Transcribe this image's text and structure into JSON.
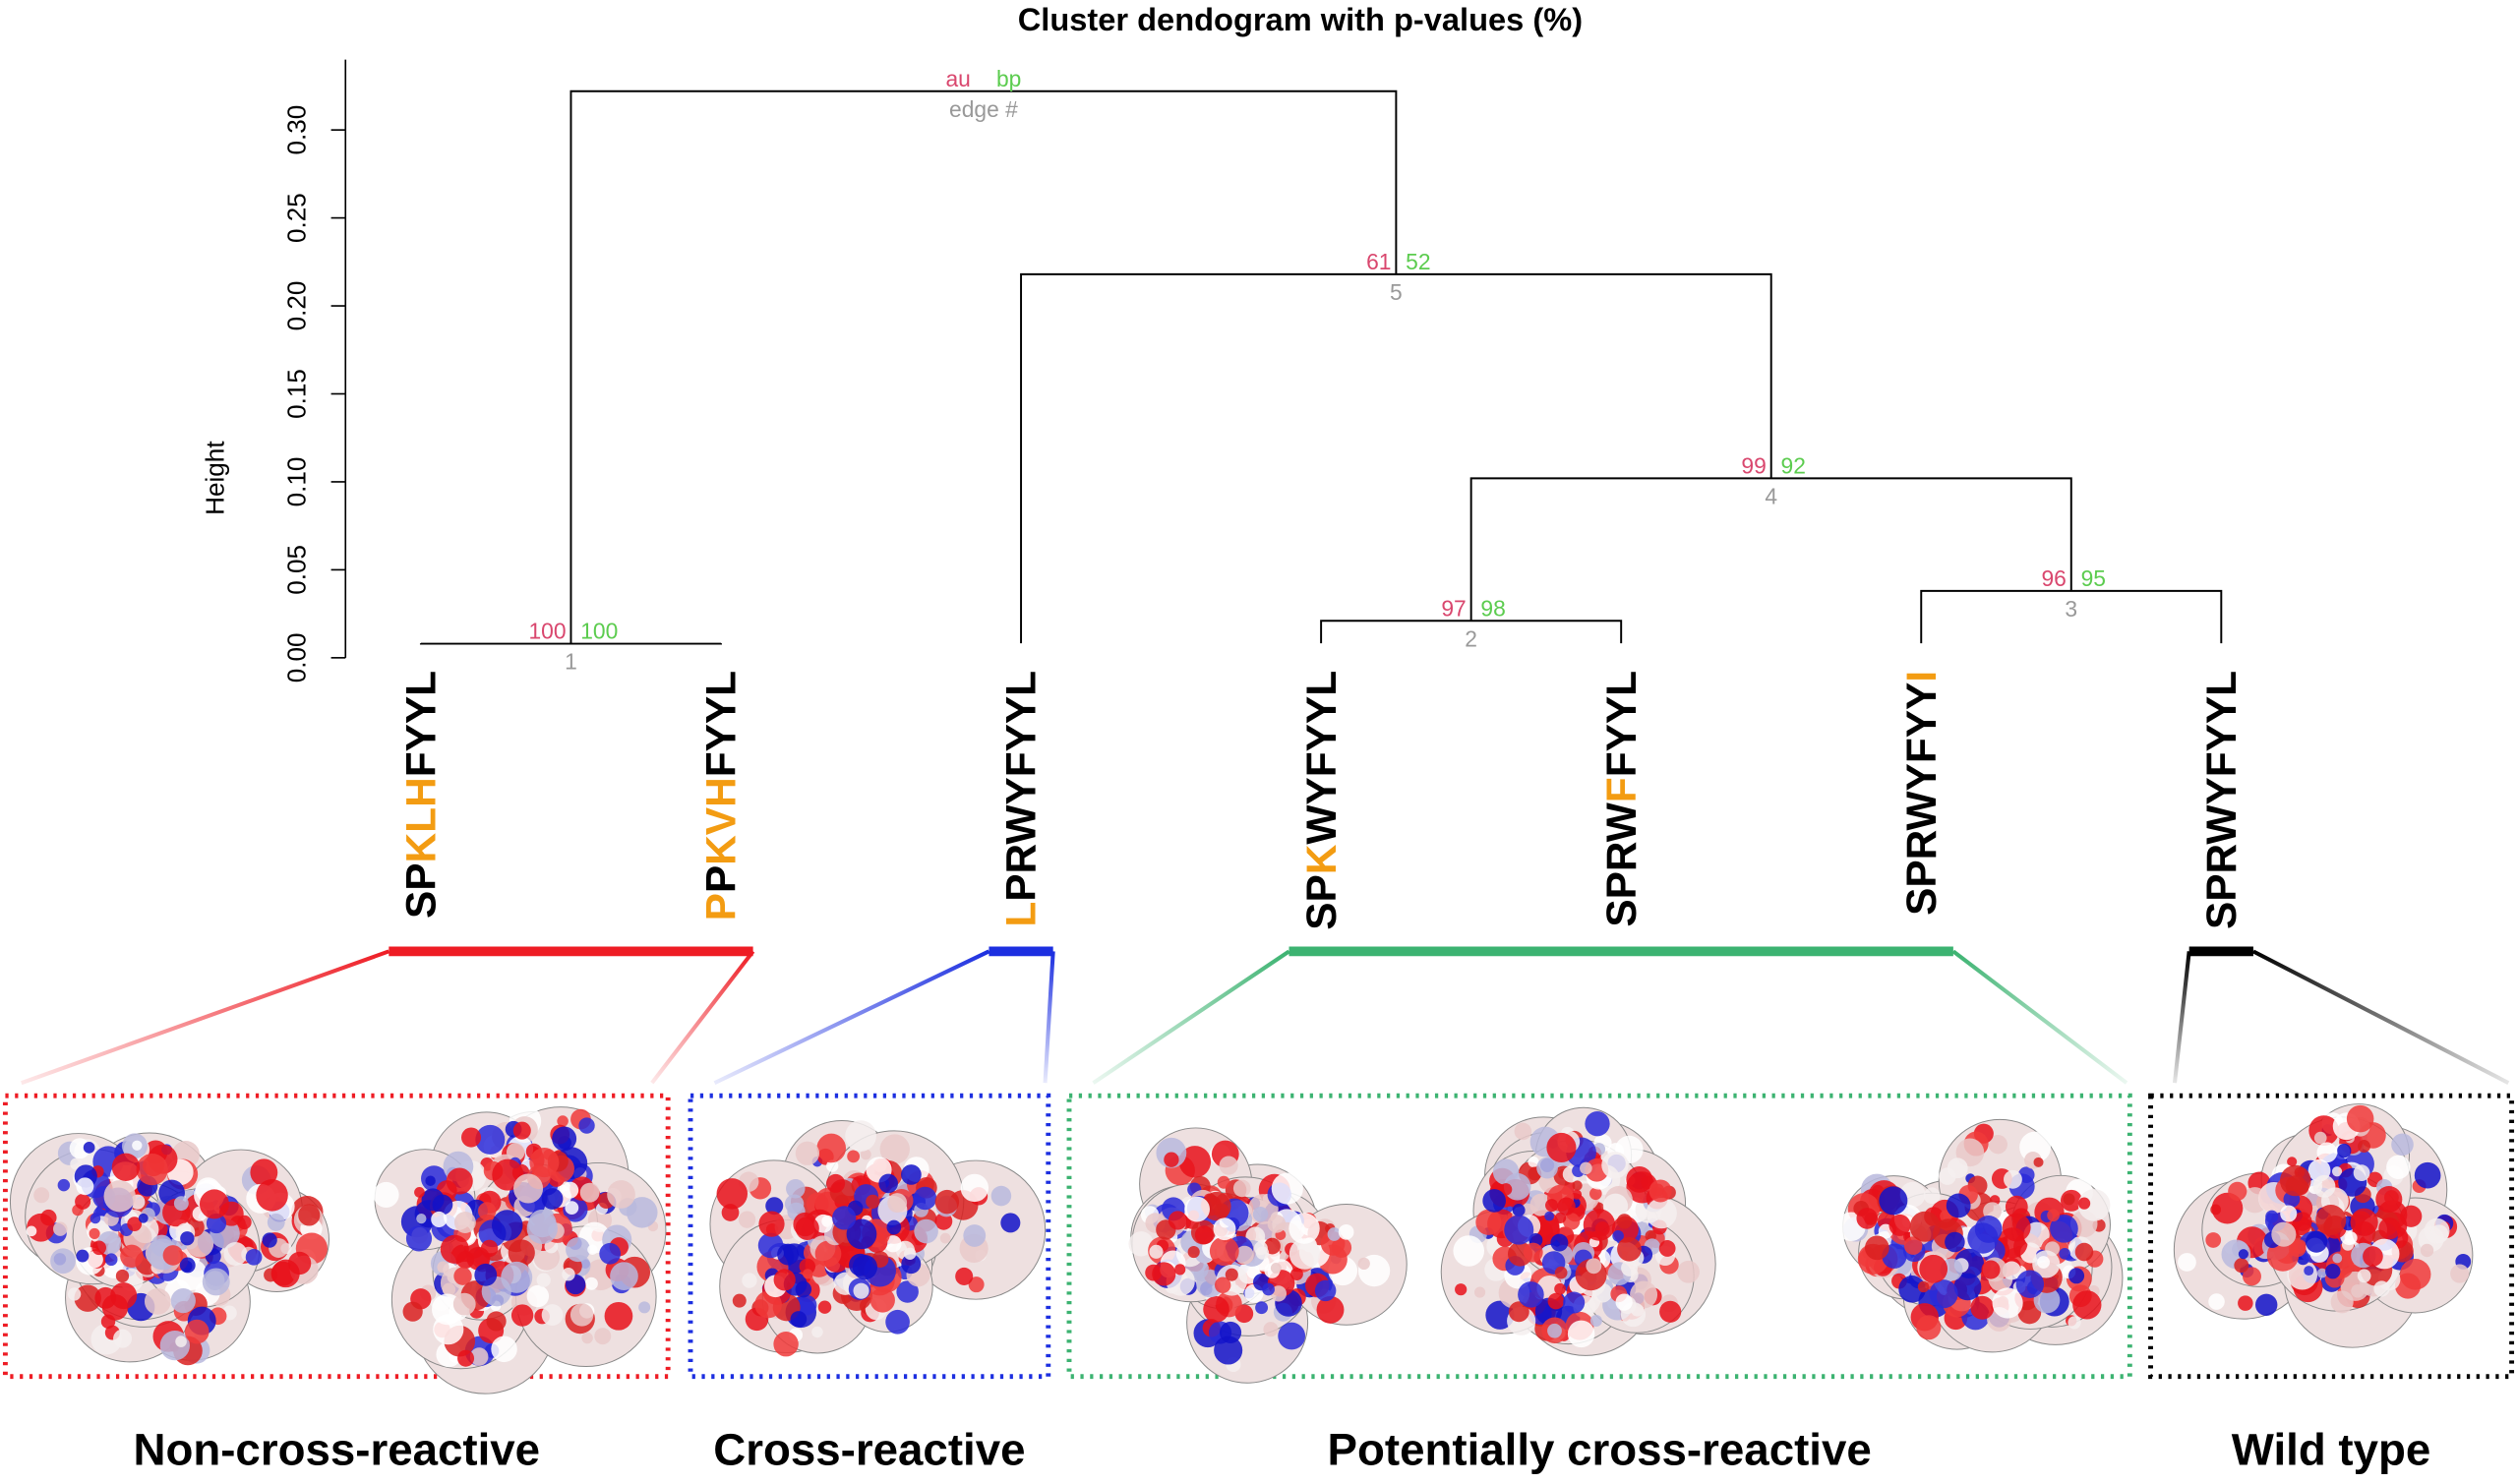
{
  "chart_data": {
    "type": "dendrogram",
    "title": "Cluster dendogram with p-values (%)",
    "y_label": "Height",
    "ylim": [
      0,
      0.34
    ],
    "yticks": [
      {
        "value": 0,
        "label": "0.00"
      },
      0.05,
      {
        "value": 0.1,
        "label": "0.10"
      },
      0.15,
      {
        "value": 0.2,
        "label": "0.20"
      },
      0.25,
      {
        "value": 0.3,
        "label": "0.30"
      }
    ],
    "line_color": "#000000",
    "au_color": "#d9476e",
    "bp_color": "#5ccc4f",
    "edge_color": "#999999",
    "legend": {
      "au": "au",
      "bp": "bp",
      "edge": "edge #"
    },
    "leaves": [
      [
        {
          "text": "SP",
          "color": "#000000"
        },
        {
          "text": "KLH",
          "color": "#f39c12"
        },
        {
          "text": "FYYL",
          "color": "#000000"
        }
      ],
      [
        {
          "text": "P",
          "color": "#f39c12"
        },
        {
          "text": "P",
          "color": "#000000"
        },
        {
          "text": "KVH",
          "color": "#f39c12"
        },
        {
          "text": "FYYL",
          "color": "#000000"
        }
      ],
      [
        {
          "text": "L",
          "color": "#f39c12"
        },
        {
          "text": "PRWYFYYL",
          "color": "#000000"
        }
      ],
      [
        {
          "text": "SP",
          "color": "#000000"
        },
        {
          "text": "K",
          "color": "#f39c12"
        },
        {
          "text": "WYFYYL",
          "color": "#000000"
        }
      ],
      [
        {
          "text": "SPRW",
          "color": "#000000"
        },
        {
          "text": "F",
          "color": "#f39c12"
        },
        {
          "text": "FYYL",
          "color": "#000000"
        }
      ],
      [
        {
          "text": "SPRWYFYY",
          "color": "#000000"
        },
        {
          "text": "I",
          "color": "#f39c12"
        }
      ],
      [
        {
          "text": "SPRWYFYYL",
          "color": "#000000"
        }
      ]
    ],
    "merges": [
      {
        "merge": [
          -1,
          -2
        ],
        "height": 0.008,
        "au": 100,
        "bp": 100,
        "edge": 1
      },
      {
        "merge": [
          -4,
          -5
        ],
        "height": 0.021,
        "au": 97,
        "bp": 98,
        "edge": 2
      },
      {
        "merge": [
          -6,
          -7
        ],
        "height": 0.038,
        "au": 96,
        "bp": 95,
        "edge": 3
      },
      {
        "merge": [
          2,
          3
        ],
        "height": 0.102,
        "au": 99,
        "bp": 92,
        "edge": 4
      },
      {
        "merge": [
          -3,
          4
        ],
        "height": 0.218,
        "au": 61,
        "bp": 52,
        "edge": 5
      },
      {
        "merge": [
          1,
          5
        ],
        "height": 0.322,
        "au": null,
        "bp": null,
        "edge": null
      }
    ],
    "groups": [
      {
        "name": "Non-cross-reactive",
        "leaves": [
          1,
          2
        ],
        "color": "#ee1c24"
      },
      {
        "name": "Cross-reactive",
        "leaves": [
          3
        ],
        "color": "#1c2fe0"
      },
      {
        "name": "Potentially cross-reactive",
        "leaves": [
          4,
          5,
          6
        ],
        "color": "#3cb371"
      },
      {
        "name": "Wild type",
        "leaves": [
          7
        ],
        "color": "#000000"
      }
    ]
  }
}
